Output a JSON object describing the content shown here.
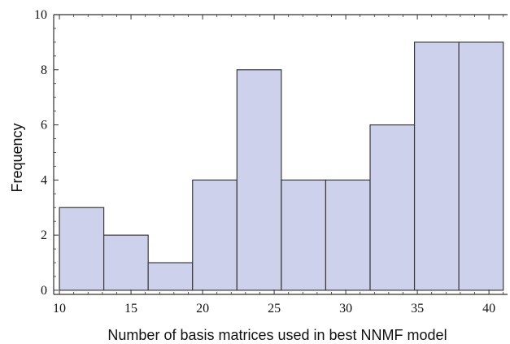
{
  "chart_data": {
    "type": "bar",
    "title": "",
    "xlabel": "Number of basis matrices used in best NNMF model",
    "ylabel": "Frequency",
    "bins": [
      {
        "x0": 10,
        "x1": 13.1,
        "value": 3
      },
      {
        "x0": 13.1,
        "x1": 16.2,
        "value": 2
      },
      {
        "x0": 16.2,
        "x1": 19.3,
        "value": 1
      },
      {
        "x0": 19.3,
        "x1": 22.4,
        "value": 4
      },
      {
        "x0": 22.4,
        "x1": 25.5,
        "value": 8
      },
      {
        "x0": 25.5,
        "x1": 28.6,
        "value": 4
      },
      {
        "x0": 28.6,
        "x1": 31.7,
        "value": 4
      },
      {
        "x0": 31.7,
        "x1": 34.8,
        "value": 6
      },
      {
        "x0": 34.8,
        "x1": 37.9,
        "value": 9
      },
      {
        "x0": 37.9,
        "x1": 41.0,
        "value": 9
      }
    ],
    "xlim": [
      9.6,
      41.3
    ],
    "ylim": [
      -0.15,
      10
    ],
    "x_ticks": [
      "10",
      "15",
      "20",
      "25",
      "30",
      "35",
      "40"
    ],
    "y_ticks": [
      "0",
      "2",
      "4",
      "6",
      "8",
      "10"
    ],
    "grid": false,
    "bar_color": "#cdd1eb",
    "bar_edge_color": "#3a3a3a"
  }
}
